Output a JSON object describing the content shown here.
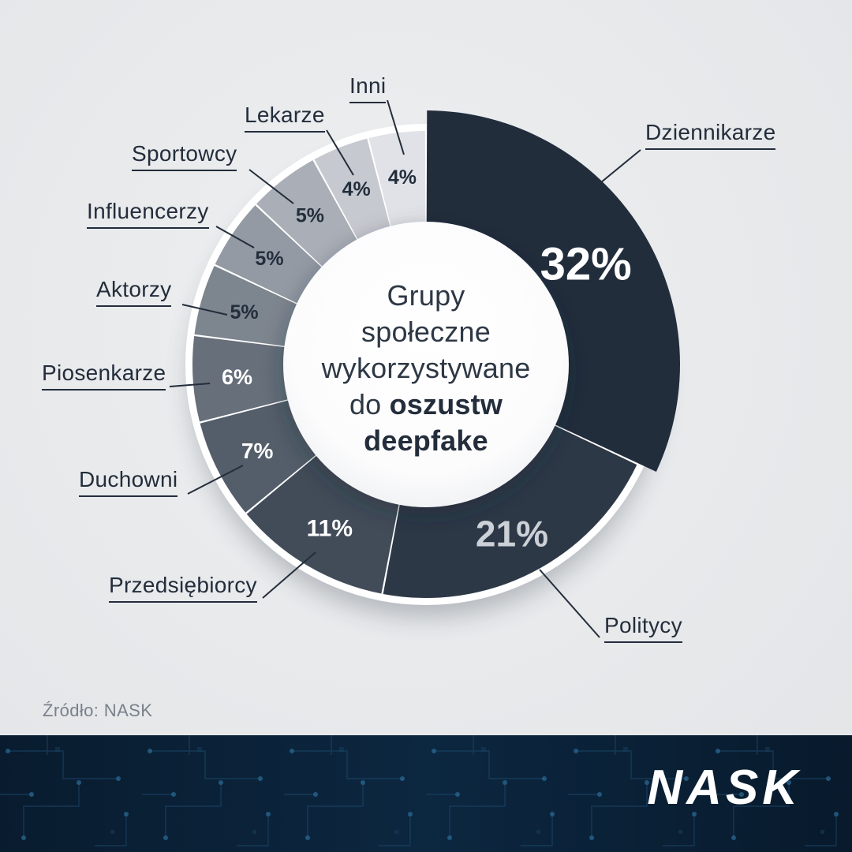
{
  "chart_data": {
    "type": "pie",
    "variant": "donut",
    "title": "Grupy społeczne wykorzystywane do oszustw deepfake",
    "categories": [
      "Dziennikarze",
      "Politycy",
      "Przedsiębiorcy",
      "Duchowni",
      "Piosenkarze",
      "Aktorzy",
      "Influencerzy",
      "Sportowcy",
      "Lekarze",
      "Inni"
    ],
    "values": [
      32,
      21,
      11,
      7,
      6,
      5,
      5,
      5,
      4,
      4
    ],
    "unit": "%",
    "start_angle": "top",
    "direction": "clockwise",
    "legend_position": "around-labels-with-leader-lines",
    "slice_colors": [
      "#222d3c",
      "#2d3847",
      "#424c59",
      "#545e6a",
      "#666f7a",
      "#7d858f",
      "#939aa3",
      "#aaafb7",
      "#c6c9cf",
      "#e0e2e7"
    ],
    "value_label_colors": [
      "#ffffff",
      "#ccd1d7",
      "#ffffff",
      "#ffffff",
      "#ffffff",
      "#232e3d",
      "#232e3d",
      "#232e3d",
      "#232e3d",
      "#232e3d"
    ]
  },
  "center_title": {
    "line1": "Grupy",
    "line2": "społeczne",
    "line3": "wykorzystywane",
    "line4_regular": "do",
    "line4_bold": "oszustw",
    "line5_bold": "deepfake"
  },
  "source": {
    "label": "Źródło: NASK"
  },
  "footer": {
    "logo": "NASK"
  },
  "theme": {
    "background": "#e8eaec",
    "footer_background": "#0a1f33",
    "label_color": "#232d3b",
    "accent_dark": "#222d3c"
  }
}
